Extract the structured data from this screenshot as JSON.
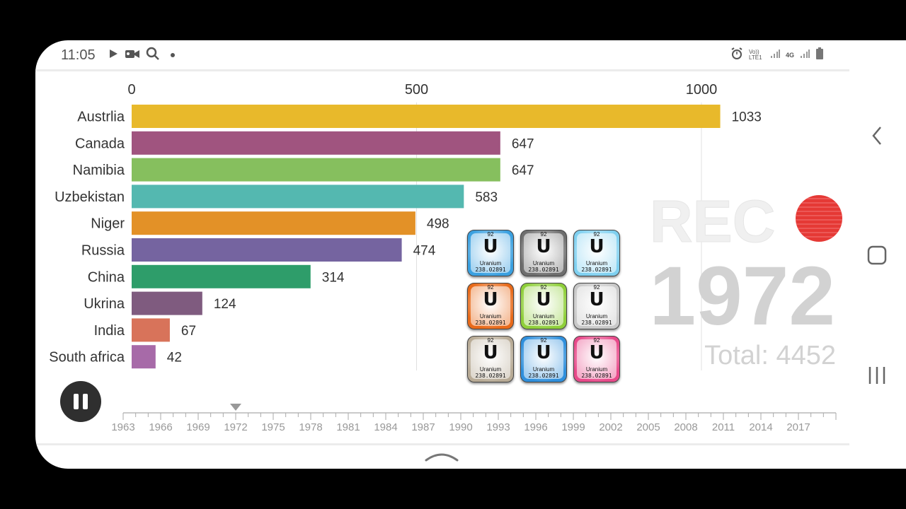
{
  "status_bar": {
    "time": "11:05",
    "left_icons": [
      "play-icon",
      "video-camera-icon",
      "search-icon",
      "dot-icon"
    ],
    "right_icons": [
      "alarm-icon",
      "volte-icon",
      "signal-icon",
      "4g-icon",
      "signal-icon",
      "battery-icon"
    ],
    "volte_label": "Vo)) LTE1",
    "net_label": "4G"
  },
  "overlay": {
    "rec_label": "REC",
    "year": "1972",
    "total_label": "Total: 4452",
    "rec_dot_color": "#e53935"
  },
  "playback": {
    "state": "pause-icon"
  },
  "timeline": {
    "years": [
      "1963",
      "1966",
      "1969",
      "1972",
      "1975",
      "1978",
      "1981",
      "1984",
      "1987",
      "1990",
      "1993",
      "1996",
      "1999",
      "2002",
      "2005",
      "2008",
      "2011",
      "2014",
      "2017"
    ],
    "current": "1972"
  },
  "tiles": [
    {
      "number": "92",
      "symbol": "U",
      "name": "Uranium",
      "mass": "238.02891",
      "color": "#3aa0e0"
    },
    {
      "number": "92",
      "symbol": "U",
      "name": "Uranium",
      "mass": "238.02891",
      "color": "#6e6e6e"
    },
    {
      "number": "92",
      "symbol": "U",
      "name": "Uranium",
      "mass": "238.02891",
      "color": "#7fd0f0"
    },
    {
      "number": "92",
      "symbol": "U",
      "name": "Uranium",
      "mass": "238.02891",
      "color": "#e86a1a"
    },
    {
      "number": "92",
      "symbol": "U",
      "name": "Uranium",
      "mass": "238.02891",
      "color": "#8fcf3a"
    },
    {
      "number": "92",
      "symbol": "U",
      "name": "Uranium",
      "mass": "238.02891",
      "color": "#c8c8c8"
    },
    {
      "number": "92",
      "symbol": "U",
      "name": "Uranium",
      "mass": "238.02891",
      "color": "#b8ab96"
    },
    {
      "number": "92",
      "symbol": "U",
      "name": "Uranium",
      "mass": "238.02891",
      "color": "#2f8fdc"
    },
    {
      "number": "92",
      "symbol": "U",
      "name": "Uranium",
      "mass": "238.02891",
      "color": "#e84a8a"
    }
  ],
  "nav": {
    "back_icon": "chevron-left-icon",
    "home_icon": "home-square-icon",
    "recents_icon": "recents-icon",
    "up_icon": "chevron-up-icon"
  },
  "chart_data": {
    "type": "bar",
    "orientation": "horizontal",
    "categories": [
      "Austrlia",
      "Canada",
      "Namibia",
      "Uzbekistan",
      "Niger",
      "Russia",
      "China",
      "Ukrina",
      "India",
      "South africa"
    ],
    "values": [
      1033,
      647,
      647,
      583,
      498,
      474,
      314,
      124,
      67,
      42
    ],
    "value_labels": [
      "1033",
      "647",
      "647",
      "583",
      "498",
      "474",
      "314",
      "124",
      "67",
      "42"
    ],
    "colors": [
      "#e8b92b",
      "#a0547f",
      "#86bf5e",
      "#54b8b0",
      "#e39127",
      "#7564a0",
      "#2e9d6a",
      "#7f5b7f",
      "#d8735a",
      "#a76aa8"
    ],
    "xlim": [
      0,
      1100
    ],
    "xticks": [
      0,
      500,
      1000
    ],
    "xtick_labels": [
      "0",
      "500",
      "1000"
    ],
    "grid": true,
    "axis_position": "top"
  }
}
